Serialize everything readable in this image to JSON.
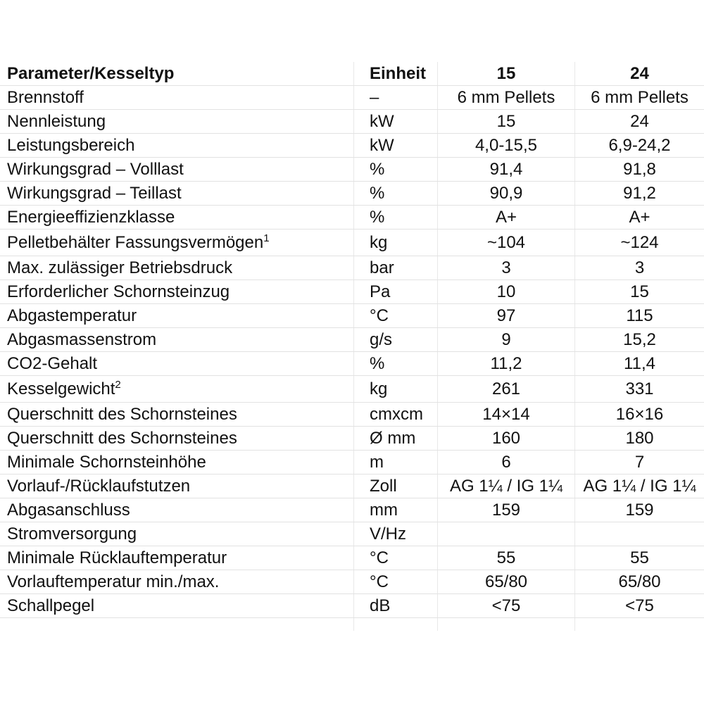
{
  "table": {
    "header": [
      "Parameter/Kesseltyp",
      "Einheit",
      "15",
      "24"
    ],
    "rows": [
      [
        {
          "text": "Brennstoff"
        },
        "–",
        "6 mm Pellets",
        "6 mm Pellets"
      ],
      [
        {
          "text": "Nennleistung"
        },
        "kW",
        "15",
        "24"
      ],
      [
        {
          "text": "Leistungsbereich"
        },
        "kW",
        "4,0-15,5",
        "6,9-24,2"
      ],
      [
        {
          "text": "Wirkungsgrad – Volllast"
        },
        "%",
        "91,4",
        "91,8"
      ],
      [
        {
          "text": "Wirkungsgrad – Teillast"
        },
        "%",
        "90,9",
        "91,2"
      ],
      [
        {
          "text": "Energieeffizienzklasse"
        },
        "%",
        "A+",
        "A+"
      ],
      [
        {
          "text": "Pelletbehälter Fassungsvermögen",
          "sup": "1"
        },
        "kg",
        "~104",
        "~124"
      ],
      [
        {
          "text": "Max. zulässiger Betriebsdruck"
        },
        "bar",
        "3",
        "3"
      ],
      [
        {
          "text": "Erforderlicher Schornsteinzug"
        },
        "Pa",
        "10",
        "15"
      ],
      [
        {
          "text": "Abgastemperatur"
        },
        "°C",
        "97",
        "115"
      ],
      [
        {
          "text": "Abgasmassenstrom"
        },
        "g/s",
        "9",
        "15,2"
      ],
      [
        {
          "text": "CO2-Gehalt"
        },
        "%",
        "11,2",
        "11,4"
      ],
      [
        {
          "text": "Kesselgewicht",
          "sup": "2"
        },
        "kg",
        "261",
        "331"
      ],
      [
        {
          "text": "Querschnitt des Schornsteines"
        },
        "cmxcm",
        "14×14",
        "16×16"
      ],
      [
        {
          "text": "Querschnitt des Schornsteines"
        },
        "Ø mm",
        "160",
        "180"
      ],
      [
        {
          "text": "Minimale Schornsteinhöhe"
        },
        "m",
        "6",
        "7"
      ],
      [
        {
          "text": "Vorlauf-/Rücklaufstutzen"
        },
        "Zoll",
        "AG 1¼ / IG 1¼",
        "AG 1¼ / IG 1¼"
      ],
      [
        {
          "text": "Abgasanschluss"
        },
        "mm",
        "159",
        "159"
      ],
      [
        {
          "text": "Stromversorgung"
        },
        "V/Hz",
        null,
        null
      ],
      [
        {
          "text": "Minimale Rücklauftemperatur"
        },
        "°C",
        "55",
        "55"
      ],
      [
        {
          "text": "Vorlauftemperatur min./max."
        },
        "°C",
        "65/80",
        "65/80"
      ],
      [
        {
          "text": "Schallpegel"
        },
        "dB",
        "<75",
        "<75"
      ]
    ]
  }
}
